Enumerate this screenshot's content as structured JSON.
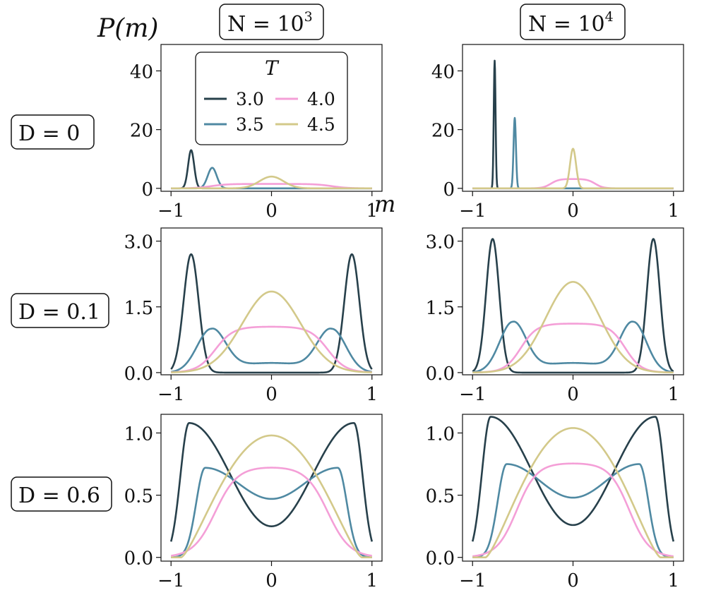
{
  "figure": {
    "ylabel": "P(m)",
    "xlabel": "m",
    "column_headers": [
      {
        "label": "N = 10",
        "exp": "3"
      },
      {
        "label": "N = 10",
        "exp": "4"
      }
    ],
    "row_headers": [
      "D = 0",
      "D = 0.1",
      "D = 0.6"
    ],
    "legend": {
      "title": "T",
      "entries": [
        "3.0",
        "3.5",
        "4.0",
        "4.5"
      ]
    },
    "colors": {
      "T3.0": "#27404b",
      "T3.5": "#4f89a2",
      "T4.0": "#f49fd7",
      "T4.5": "#d3c98a"
    }
  },
  "chart_data": [
    {
      "type": "line",
      "title": "D = 0, N = 10^3",
      "xlim": [
        -1,
        1
      ],
      "ylim": [
        -1,
        49
      ],
      "xticks": [
        "-1",
        "0",
        "1"
      ],
      "yticks": [
        "0",
        "20",
        "40"
      ],
      "series": [
        {
          "name": "3.0",
          "shape": "peak",
          "params": [
            -0.8,
            13.0,
            0.03
          ]
        },
        {
          "name": "3.5",
          "shape": "peak",
          "params": [
            -0.59,
            7.0,
            0.045
          ]
        },
        {
          "name": "4.0",
          "shape": "plateau",
          "params": [
            0.0,
            1.5,
            0.6,
            0.08
          ]
        },
        {
          "name": "4.5",
          "shape": "peak",
          "params": [
            0.0,
            4.0,
            0.12
          ]
        }
      ]
    },
    {
      "type": "line",
      "title": "D = 0, N = 10^4",
      "xlim": [
        -1,
        1
      ],
      "ylim": [
        -1,
        49
      ],
      "xticks": [
        "-1",
        "0",
        "1"
      ],
      "yticks": [
        "0",
        "20",
        "40"
      ],
      "series": [
        {
          "name": "3.0",
          "shape": "peak",
          "params": [
            -0.78,
            43.5,
            0.009
          ]
        },
        {
          "name": "3.5",
          "shape": "peak",
          "params": [
            -0.58,
            24.0,
            0.012
          ]
        },
        {
          "name": "4.0",
          "shape": "plateau",
          "params": [
            0.0,
            3.2,
            0.22,
            0.04
          ]
        },
        {
          "name": "4.5",
          "shape": "peak",
          "params": [
            0.0,
            13.5,
            0.03
          ]
        }
      ]
    },
    {
      "type": "line",
      "title": "D = 0.1, N = 10^3",
      "xlim": [
        -1,
        1
      ],
      "ylim": [
        -0.05,
        3.3
      ],
      "xticks": [
        "-1",
        "0",
        "1"
      ],
      "yticks": [
        "0.0",
        "1.5",
        "3.0"
      ],
      "series": [
        {
          "name": "3.0",
          "shape": "twin",
          "params": [
            0.8,
            2.7,
            0.075
          ]
        },
        {
          "name": "3.5",
          "shape": "twin",
          "params": [
            0.6,
            1.0,
            0.14,
            0.22
          ]
        },
        {
          "name": "4.0",
          "shape": "plateau",
          "params": [
            0.0,
            1.05,
            0.56,
            0.09
          ]
        },
        {
          "name": "4.5",
          "shape": "peak",
          "params": [
            0.0,
            1.85,
            0.29
          ]
        }
      ]
    },
    {
      "type": "line",
      "title": "D = 0.1, N = 10^4",
      "xlim": [
        -1,
        1
      ],
      "ylim": [
        -0.05,
        3.3
      ],
      "xticks": [
        "-1",
        "0",
        "1"
      ],
      "yticks": [
        "0.0",
        "1.5",
        "3.0"
      ],
      "series": [
        {
          "name": "3.0",
          "shape": "twin",
          "params": [
            0.8,
            3.05,
            0.065
          ]
        },
        {
          "name": "3.5",
          "shape": "twin",
          "params": [
            0.6,
            1.16,
            0.13,
            0.22
          ]
        },
        {
          "name": "4.0",
          "shape": "plateau",
          "params": [
            0.0,
            1.12,
            0.52,
            0.08
          ]
        },
        {
          "name": "4.5",
          "shape": "peak",
          "params": [
            0.0,
            2.07,
            0.27
          ]
        }
      ]
    },
    {
      "type": "line",
      "title": "D = 0.6, N = 10^3",
      "xlim": [
        -1,
        1
      ],
      "ylim": [
        -0.03,
        1.15
      ],
      "xticks": [
        "-1",
        "0",
        "1"
      ],
      "yticks": [
        "0.0",
        "0.5",
        "1.0"
      ],
      "series": [
        {
          "name": "3.0",
          "shape": "wide",
          "params": [
            1.08,
            0.25,
            0.82,
            4.2
          ]
        },
        {
          "name": "3.5",
          "shape": "wide",
          "params": [
            0.72,
            0.47,
            0.66,
            3.2
          ]
        },
        {
          "name": "4.0",
          "shape": "plateau",
          "params": [
            0.0,
            0.73,
            0.56,
            0.11
          ]
        },
        {
          "name": "4.5",
          "shape": "dome",
          "params": [
            0.98,
            0.9
          ]
        }
      ]
    },
    {
      "type": "line",
      "title": "D = 0.6, N = 10^4",
      "xlim": [
        -1,
        1
      ],
      "ylim": [
        -0.03,
        1.15
      ],
      "xticks": [
        "-1",
        "0",
        "1"
      ],
      "yticks": [
        "0.0",
        "0.5",
        "1.0"
      ],
      "series": [
        {
          "name": "3.0",
          "shape": "wide",
          "params": [
            1.13,
            0.26,
            0.82,
            4.6
          ]
        },
        {
          "name": "3.5",
          "shape": "wide",
          "params": [
            0.75,
            0.48,
            0.66,
            3.4
          ]
        },
        {
          "name": "4.0",
          "shape": "plateau",
          "params": [
            0.0,
            0.76,
            0.56,
            0.1
          ]
        },
        {
          "name": "4.5",
          "shape": "dome",
          "params": [
            1.04,
            0.87
          ]
        }
      ]
    }
  ]
}
